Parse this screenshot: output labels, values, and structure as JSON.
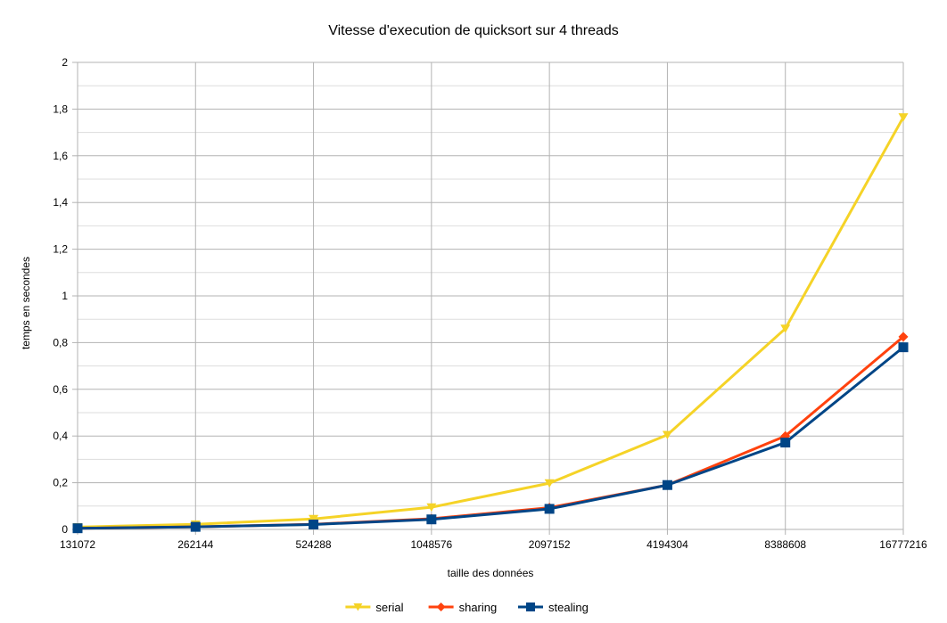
{
  "chart_data": {
    "type": "line",
    "title": "Vitesse d'execution de quicksort sur 4 threads",
    "xlabel": "taille des données",
    "ylabel": "temps en secondes",
    "categories": [
      "131072",
      "262144",
      "524288",
      "1048576",
      "2097152",
      "4194304",
      "8388608",
      "16777216"
    ],
    "yticks": [
      "0",
      "0,2",
      "0,4",
      "0,6",
      "0,8",
      "1",
      "1,2",
      "1,4",
      "1,6",
      "1,8",
      "2"
    ],
    "ylim": [
      0,
      2
    ],
    "grid": true,
    "legend_position": "bottom",
    "series": [
      {
        "name": "serial",
        "color": "#f5d327",
        "marker": "triangle-down",
        "values": [
          0.01,
          0.022,
          0.045,
          0.095,
          0.198,
          0.405,
          0.86,
          1.765
        ]
      },
      {
        "name": "sharing",
        "color": "#ff420e",
        "marker": "diamond",
        "values": [
          0.005,
          0.011,
          0.022,
          0.046,
          0.093,
          0.19,
          0.4,
          0.825
        ]
      },
      {
        "name": "stealing",
        "color": "#004586",
        "marker": "square",
        "values": [
          0.005,
          0.011,
          0.021,
          0.043,
          0.088,
          0.19,
          0.372,
          0.78
        ]
      }
    ]
  }
}
